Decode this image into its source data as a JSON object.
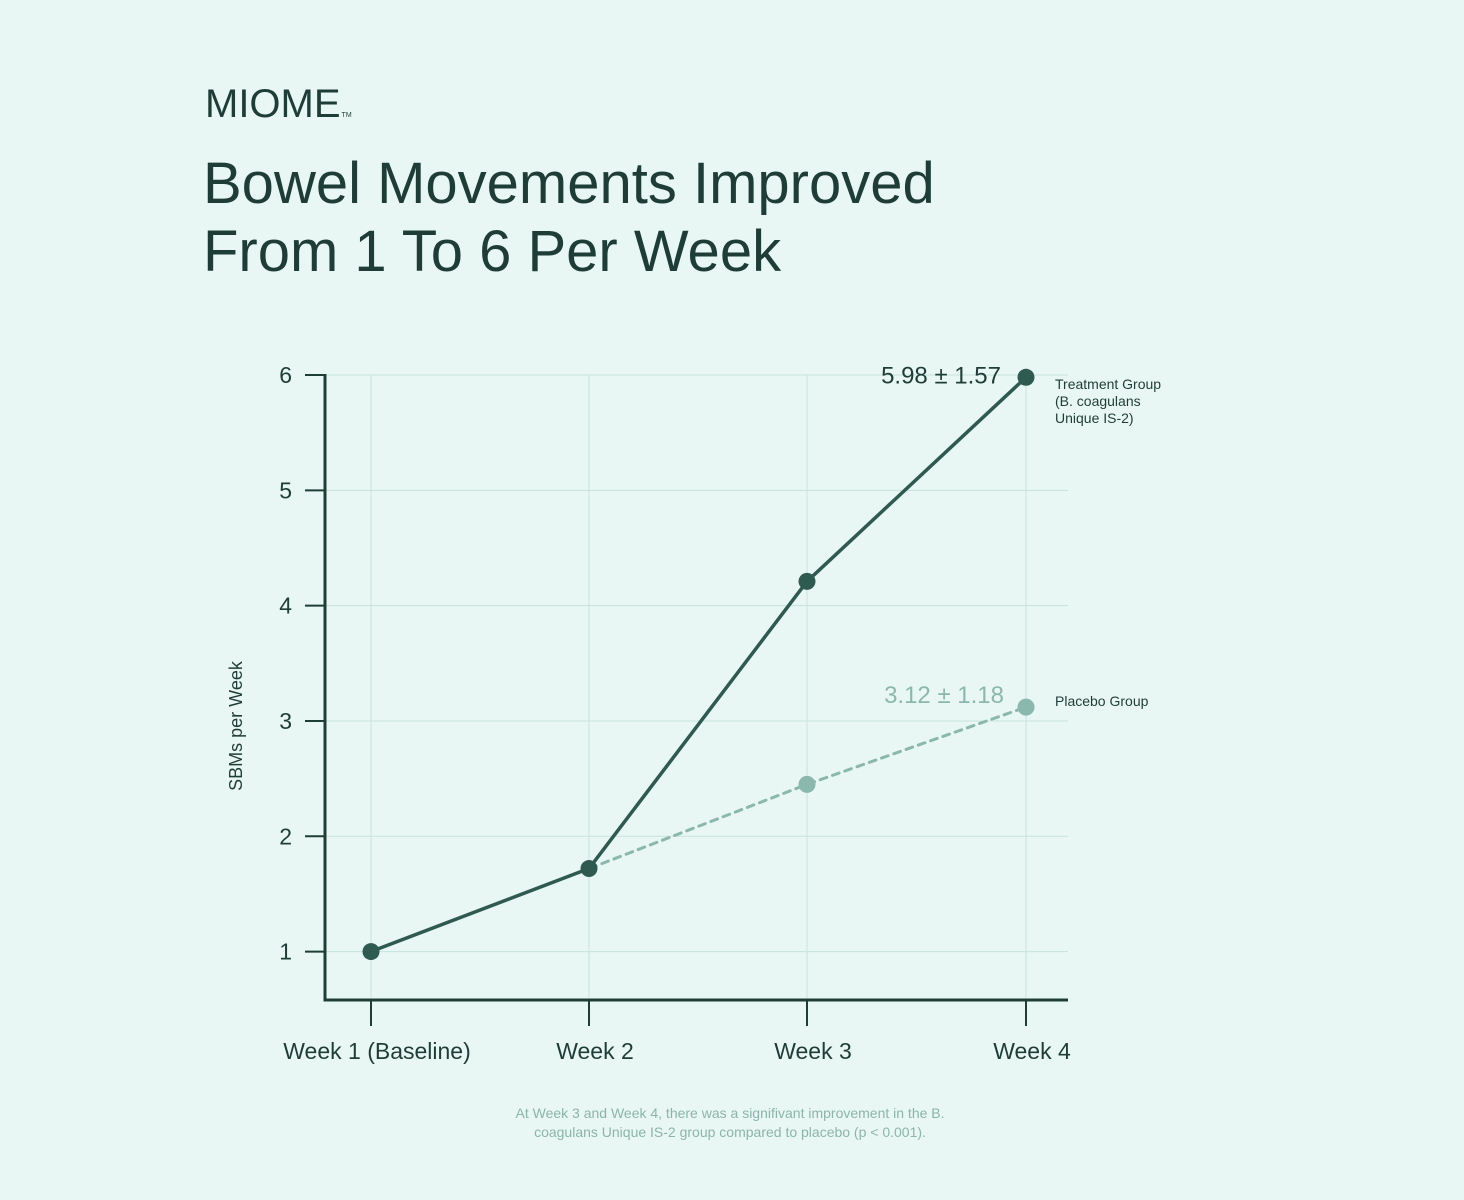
{
  "brand": {
    "name": "MIOME",
    "tm": "TM"
  },
  "title": {
    "line1": "Bowel Movements Improved",
    "line2": "From 1 To 6 Per Week"
  },
  "footnote": {
    "line1": "At Week 3 and Week 4, there was a signifivant improvement in the B.",
    "line2": "coagulans Unique IS-2 group compared to placebo (p < 0.001)."
  },
  "colors": {
    "background": "#e8f7f3",
    "treatment": "#2f5a50",
    "placebo": "#8bb8ac",
    "axis": "#1f3d37",
    "grid": "#c9e2dc"
  },
  "chart_data": {
    "type": "line",
    "categories": [
      "Week 1 (Baseline)",
      "Week 2",
      "Week 3",
      "Week 4"
    ],
    "ylabel": "SBMs per Week",
    "xlabel": "",
    "ylim": [
      0.58,
      6
    ],
    "yticks": [
      1,
      2,
      3,
      4,
      5,
      6
    ],
    "grid": true,
    "series": [
      {
        "name": "Treatment Group (B. coagulans Unique IS-2)",
        "label_lines": [
          "Treatment Group",
          "(B. coagulans",
          "Unique IS-2)"
        ],
        "values": [
          1.0,
          1.72,
          4.21,
          5.98
        ],
        "end_annotation": "5.98 ± 1.57",
        "style": "solid",
        "color": "#2f5a50"
      },
      {
        "name": "Placebo Group",
        "label_lines": [
          "Placebo Group"
        ],
        "values": [
          1.0,
          1.72,
          2.45,
          3.12
        ],
        "end_annotation": "3.12 ± 1.18",
        "style": "dashed",
        "color": "#8bb8ac"
      }
    ]
  }
}
